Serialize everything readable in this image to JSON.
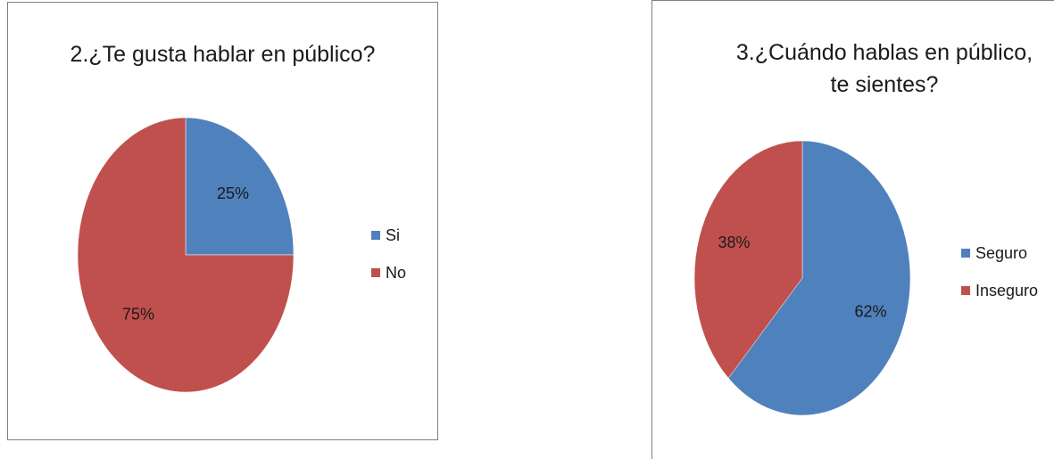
{
  "chart_data": [
    {
      "type": "pie",
      "title": "2.¿Te gusta hablar en público?",
      "categories": [
        "Si",
        "No"
      ],
      "values": [
        25,
        75
      ],
      "value_labels": [
        "25%",
        "75%"
      ],
      "colors": [
        "#4f81bd",
        "#c0504d"
      ],
      "legend": "right"
    },
    {
      "type": "pie",
      "title": "3.¿Cuándo hablas en público, te sientes?",
      "categories": [
        "Seguro",
        "Inseguro"
      ],
      "values": [
        62,
        38
      ],
      "value_labels": [
        "62%",
        "38%"
      ],
      "colors": [
        "#4f81bd",
        "#c0504d"
      ],
      "legend": "right"
    }
  ]
}
